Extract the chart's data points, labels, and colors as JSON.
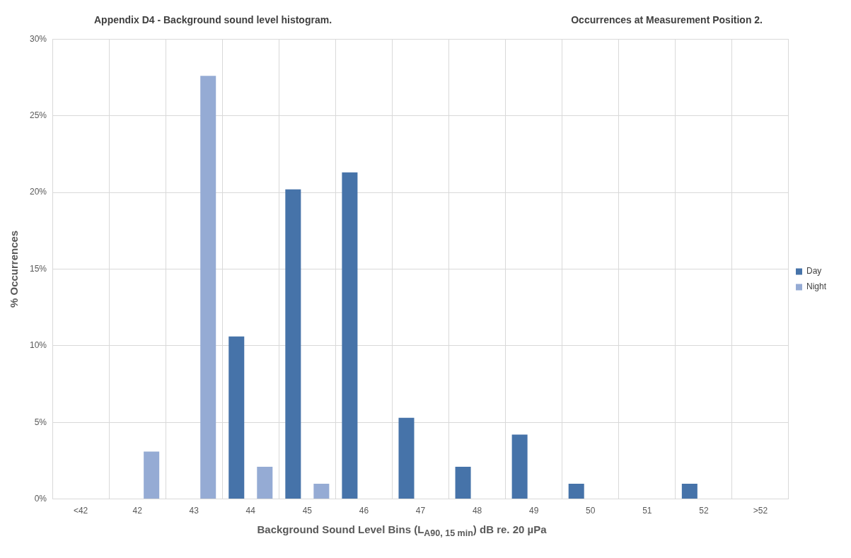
{
  "chart_data": {
    "type": "bar",
    "title": "Appendix D4 - Background sound level histogram.",
    "subtitle": "Occurrences at Measurement Position 2.",
    "xlabel": "Background Sound Level Bins (L$_{A90, 15 min}$) dB re. 20 µPa",
    "ylabel": "% Occurrences",
    "categories": [
      "<42",
      "42",
      "43",
      "44",
      "45",
      "46",
      "47",
      "48",
      "49",
      "50",
      "51",
      "52",
      ">52"
    ],
    "series": [
      {
        "name": "Day",
        "color": "#4673a9",
        "values": [
          0,
          0,
          0,
          10.6,
          20.2,
          21.3,
          5.3,
          2.1,
          4.2,
          1.0,
          0,
          1.0,
          0
        ]
      },
      {
        "name": "Night",
        "color": "#95abd4",
        "values": [
          0,
          3.1,
          27.6,
          2.1,
          1.0,
          0,
          0,
          0,
          0,
          0,
          0,
          0,
          0
        ]
      }
    ],
    "ylim": [
      0,
      30
    ],
    "yticks": [
      {
        "value": 0,
        "label": "0%"
      },
      {
        "value": 5,
        "label": "5%"
      },
      {
        "value": 10,
        "label": "10%"
      },
      {
        "value": 15,
        "label": "15%"
      },
      {
        "value": 20,
        "label": "20%"
      },
      {
        "value": 25,
        "label": "25%"
      },
      {
        "value": 30,
        "label": "30%"
      }
    ],
    "grid": true,
    "legend": "right"
  }
}
